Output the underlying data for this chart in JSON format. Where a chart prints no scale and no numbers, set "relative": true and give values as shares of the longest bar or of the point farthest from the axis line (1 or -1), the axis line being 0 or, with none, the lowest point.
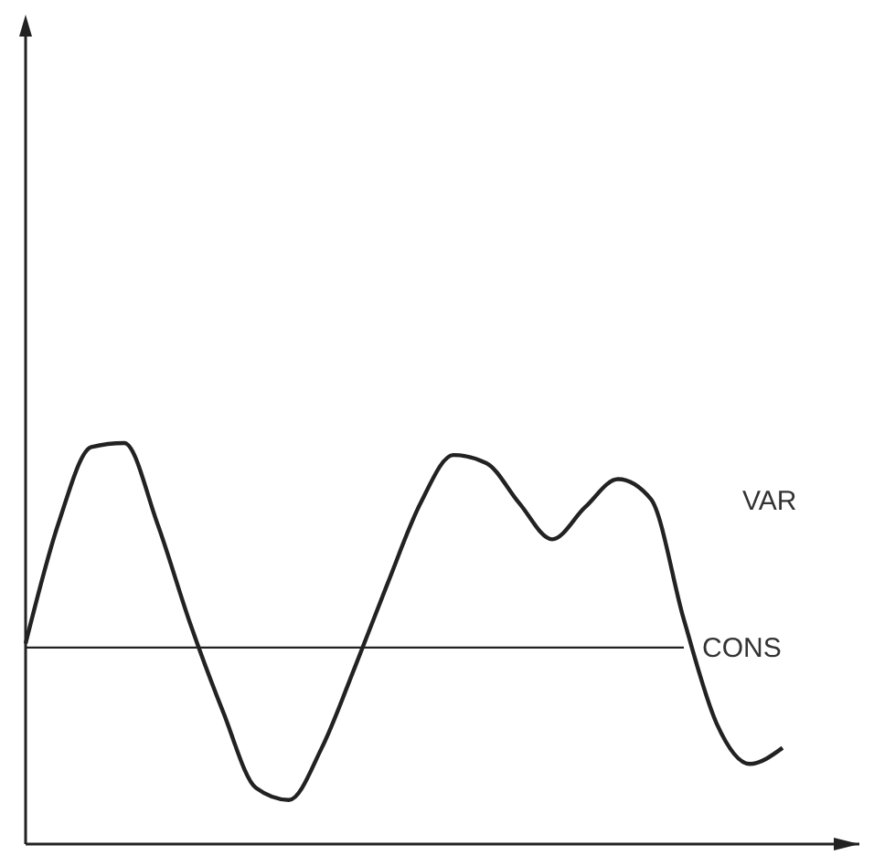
{
  "chart_data": {
    "type": "line",
    "relative": true,
    "categories": [
      null,
      null,
      null,
      null,
      null,
      null,
      null,
      null,
      null,
      null,
      null,
      null,
      null,
      null,
      null,
      null,
      null,
      null,
      null,
      null,
      null,
      null,
      null,
      null
    ],
    "series": [
      {
        "name": "VAR",
        "color": "#222222",
        "values": [
          0.5,
          0.8,
          0.99,
          1,
          0.8,
          0.55,
          0.33,
          0.14,
          0.11,
          0.24,
          0.44,
          0.65,
          0.85,
          0.97,
          0.95,
          0.85,
          0.76,
          0.84,
          0.91,
          0.86,
          0.56,
          0.3,
          0.2,
          0.24
        ]
      },
      {
        "name": "CONS",
        "color": "#222222",
        "values": [
          0.49,
          0.49,
          0.49,
          0.49,
          0.49,
          0.49,
          0.49,
          0.49,
          0.49,
          0.49,
          0.49,
          0.49,
          0.49,
          0.49,
          0.49,
          0.49,
          0.49,
          0.49,
          0.49,
          0.49,
          0.49,
          null,
          null,
          null
        ]
      }
    ]
  }
}
